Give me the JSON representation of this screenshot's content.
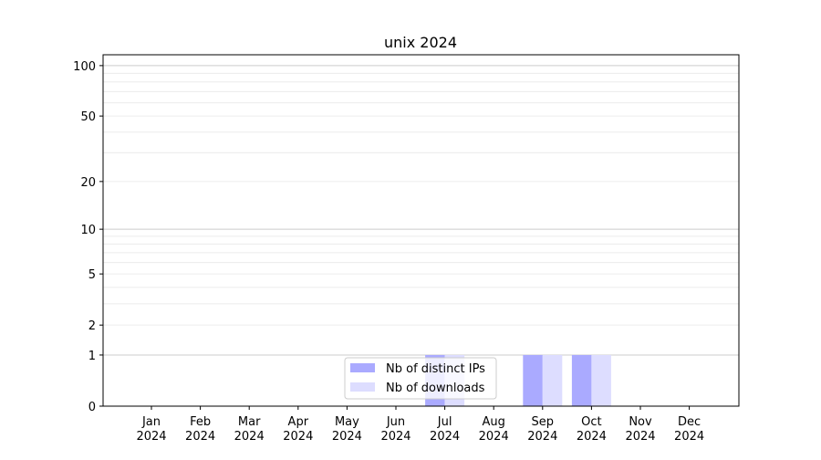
{
  "chart_data": {
    "type": "bar",
    "title": "unix 2024",
    "xlabel": "",
    "ylabel": "",
    "yscale": "log(1+y)",
    "ylim": [
      0,
      116
    ],
    "yticks": [
      0,
      1,
      2,
      5,
      10,
      20,
      50,
      100
    ],
    "ytick_labels": [
      "0",
      "1",
      "2",
      "5",
      "10",
      "20",
      "50",
      "100"
    ],
    "grid": true,
    "legend_position": "lower-center",
    "categories": [
      "Jan\n2024",
      "Feb\n2024",
      "Mar\n2024",
      "Apr\n2024",
      "May\n2024",
      "Jun\n2024",
      "Jul\n2024",
      "Aug\n2024",
      "Sep\n2024",
      "Oct\n2024",
      "Nov\n2024",
      "Dec\n2024"
    ],
    "series": [
      {
        "name": "Nb of distinct IPs",
        "color": "#aaaaff",
        "values": [
          0,
          0,
          0,
          0,
          0,
          0,
          1,
          0,
          1,
          1,
          0,
          0
        ]
      },
      {
        "name": "Nb of downloads",
        "color": "#ddddff",
        "values": [
          0,
          0,
          0,
          0,
          0,
          0,
          1,
          0,
          1,
          1,
          0,
          0
        ]
      }
    ]
  }
}
